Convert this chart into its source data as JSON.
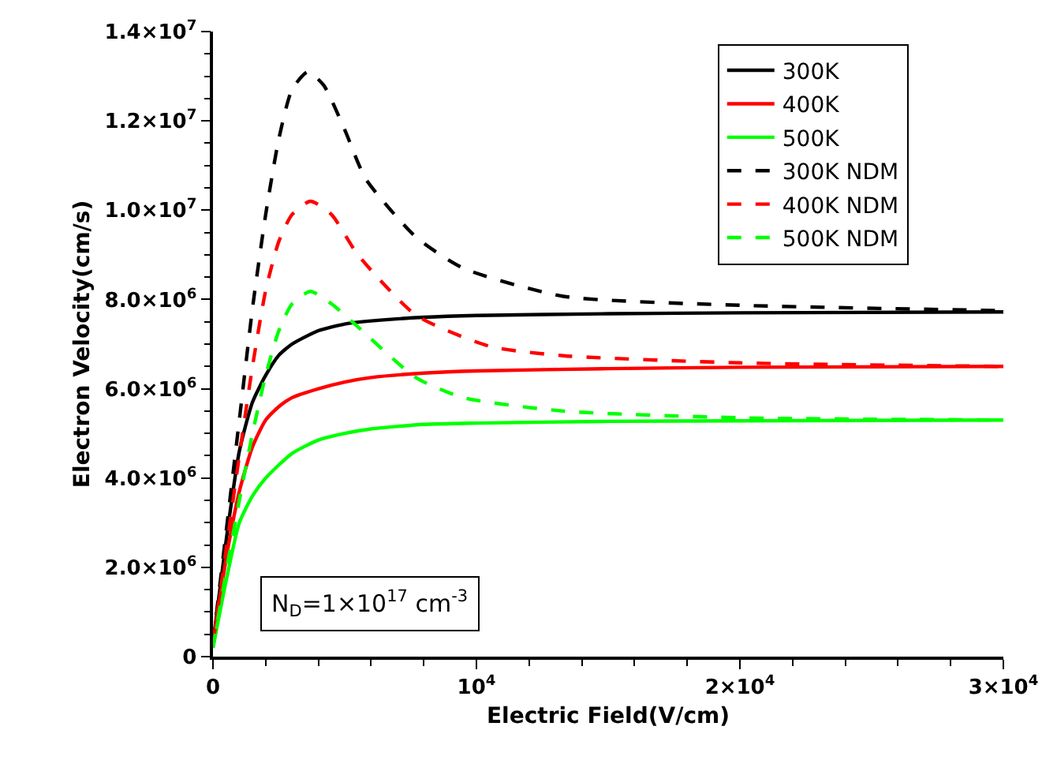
{
  "chart_data": {
    "type": "line",
    "xlabel": "Electric Field(V/cm)",
    "ylabel": "Electron Velocity(cm/s)",
    "xlim": [
      0,
      30000
    ],
    "ylim": [
      0,
      14000000
    ],
    "xticks": [
      0,
      {
        "value": 10000,
        "label": "10$^{4}$"
      },
      {
        "value": 20000,
        "label": "2×10$^{4}$"
      },
      {
        "value": 30000,
        "label": "3×10$^{4}$"
      }
    ],
    "yticks": [
      0,
      {
        "value": 2000000,
        "label": "2.0×10$^{6}$"
      },
      {
        "value": 4000000,
        "label": "4.0×10$^{6}$"
      },
      {
        "value": 6000000,
        "label": "6.0×10$^{6}$"
      },
      {
        "value": 8000000,
        "label": "8.0×10$^{6}$"
      },
      {
        "value": 10000000,
        "label": "1.0×10$^{7}$"
      },
      {
        "value": 12000000,
        "label": "1.2×10$^{7}$"
      },
      {
        "value": 14000000,
        "label": "1.4×10$^{7}$"
      }
    ],
    "legend": "top right",
    "marker": "none",
    "annotations": [
      "N$_{D}$=1×10$^{17}$ cm$^{-3}$"
    ],
    "series": [
      {
        "name": "300K",
        "color": "#000000",
        "line_style": "solid",
        "x": [
          0,
          500,
          1000,
          1500,
          2000,
          2500,
          3000,
          4000,
          5000,
          6000,
          8000,
          10000,
          15000,
          20000,
          30000
        ],
        "values": [
          300000,
          2600000,
          4600000,
          5700000,
          6300000,
          6750000,
          7000000,
          7300000,
          7450000,
          7520000,
          7600000,
          7640000,
          7680000,
          7700000,
          7720000
        ]
      },
      {
        "name": "400K",
        "color": "#ff0000",
        "line_style": "solid",
        "x": [
          0,
          500,
          1000,
          1500,
          2000,
          2500,
          3000,
          4000,
          5000,
          6000,
          8000,
          10000,
          15000,
          20000,
          30000
        ],
        "values": [
          300000,
          2200000,
          3700000,
          4700000,
          5300000,
          5600000,
          5800000,
          6000000,
          6150000,
          6250000,
          6350000,
          6400000,
          6450000,
          6480000,
          6500000
        ]
      },
      {
        "name": "500K",
        "color": "#00ff00",
        "line_style": "solid",
        "x": [
          0,
          500,
          1000,
          1500,
          2000,
          3000,
          4000,
          5000,
          6000,
          8000,
          10000,
          15000,
          20000,
          30000
        ],
        "values": [
          200000,
          1700000,
          3000000,
          3600000,
          4000000,
          4550000,
          4850000,
          5000000,
          5100000,
          5200000,
          5230000,
          5270000,
          5280000,
          5300000
        ]
      },
      {
        "name": "300K NDM",
        "color": "#000000",
        "line_style": "dashed",
        "x": [
          0,
          500,
          1000,
          1500,
          2000,
          2500,
          3000,
          3600,
          4200,
          5000,
          5800,
          7700,
          9500,
          13300,
          20000,
          30000
        ],
        "values": [
          300000,
          2800000,
          5300000,
          7800000,
          9900000,
          11600000,
          12700000,
          13100000,
          12800000,
          11800000,
          10700000,
          9400000,
          8700000,
          8070000,
          7870000,
          7750000
        ]
      },
      {
        "name": "400K NDM",
        "color": "#ff0000",
        "line_style": "dashed",
        "x": [
          0,
          500,
          1000,
          1500,
          2000,
          2500,
          3000,
          3700,
          4500,
          5500,
          7700,
          10500,
          13300,
          20000,
          30000
        ],
        "values": [
          300000,
          2400000,
          4500000,
          6500000,
          8200000,
          9300000,
          9900000,
          10200000,
          9900000,
          9000000,
          7650000,
          6950000,
          6740000,
          6580000,
          6500000
        ]
      },
      {
        "name": "500K NDM",
        "color": "#00ff00",
        "line_style": "dashed",
        "x": [
          0,
          500,
          1000,
          1500,
          2000,
          2500,
          3000,
          3700,
          4500,
          5400,
          7700,
          9500,
          13300,
          20000,
          30000
        ],
        "values": [
          200000,
          1900000,
          3500000,
          5000000,
          6300000,
          7300000,
          7900000,
          8180000,
          7900000,
          7440000,
          6250000,
          5800000,
          5500000,
          5350000,
          5300000
        ]
      }
    ]
  }
}
